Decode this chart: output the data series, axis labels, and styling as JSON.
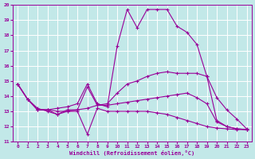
{
  "xlabel": "Windchill (Refroidissement éolien,°C)",
  "xlim": [
    -0.5,
    23.5
  ],
  "ylim": [
    11,
    20
  ],
  "yticks": [
    11,
    12,
    13,
    14,
    15,
    16,
    17,
    18,
    19,
    20
  ],
  "xticks": [
    0,
    1,
    2,
    3,
    4,
    5,
    6,
    7,
    8,
    9,
    10,
    11,
    12,
    13,
    14,
    15,
    16,
    17,
    18,
    19,
    20,
    21,
    22,
    23
  ],
  "bg_color": "#c2e8e8",
  "line_color": "#990099",
  "grid_color": "#ffffff",
  "series": [
    {
      "x": [
        0,
        1,
        2,
        3,
        4,
        5,
        6,
        7,
        8,
        9,
        10,
        11,
        12,
        13,
        14,
        15,
        16,
        17,
        18,
        19,
        20,
        21,
        22,
        23
      ],
      "y": [
        14.8,
        13.8,
        13.1,
        13.1,
        13.2,
        13.3,
        13.5,
        14.8,
        13.5,
        13.3,
        17.3,
        19.7,
        18.5,
        19.7,
        19.7,
        19.7,
        18.6,
        18.2,
        17.4,
        15.3,
        12.4,
        12.0,
        11.85,
        11.8
      ]
    },
    {
      "x": [
        0,
        1,
        2,
        3,
        4,
        5,
        6,
        7,
        8,
        9,
        10,
        11,
        12,
        13,
        14,
        15,
        16,
        17,
        18,
        19,
        20,
        21,
        22,
        23
      ],
      "y": [
        14.8,
        13.8,
        13.1,
        13.1,
        13.0,
        13.0,
        13.1,
        14.6,
        13.4,
        13.5,
        14.2,
        14.8,
        15.0,
        15.3,
        15.5,
        15.6,
        15.5,
        15.5,
        15.5,
        15.3,
        13.9,
        13.1,
        12.5,
        11.85
      ]
    },
    {
      "x": [
        0,
        1,
        2,
        3,
        4,
        5,
        6,
        7,
        8,
        9,
        10,
        11,
        12,
        13,
        14,
        15,
        16,
        17,
        18,
        19,
        20,
        21,
        22,
        23
      ],
      "y": [
        14.8,
        13.8,
        13.1,
        13.1,
        12.8,
        13.1,
        13.1,
        13.2,
        13.4,
        13.4,
        13.5,
        13.6,
        13.7,
        13.8,
        13.9,
        14.0,
        14.1,
        14.2,
        13.9,
        13.5,
        12.3,
        12.0,
        11.85,
        11.8
      ]
    },
    {
      "x": [
        0,
        1,
        2,
        3,
        4,
        5,
        6,
        7,
        8,
        9,
        10,
        11,
        12,
        13,
        14,
        15,
        16,
        17,
        18,
        19,
        20,
        21,
        22,
        23
      ],
      "y": [
        14.8,
        13.8,
        13.2,
        13.0,
        12.8,
        13.0,
        13.0,
        11.5,
        13.2,
        13.0,
        13.0,
        13.0,
        13.0,
        13.0,
        12.9,
        12.8,
        12.6,
        12.4,
        12.2,
        12.0,
        11.9,
        11.85,
        11.8,
        11.8
      ]
    }
  ]
}
